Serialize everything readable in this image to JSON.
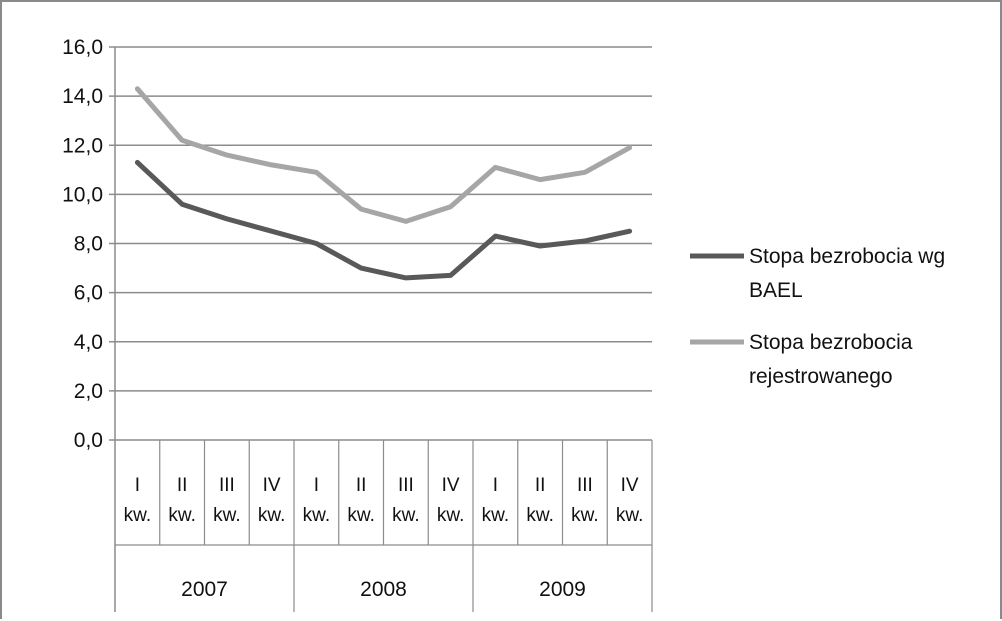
{
  "chart_data": {
    "type": "line",
    "categories": [
      "I kw.",
      "II kw.",
      "III kw.",
      "IV kw.",
      "I kw.",
      "II kw.",
      "III kw.",
      "IV kw.",
      "I kw.",
      "II kw.",
      "III kw.",
      "IV kw."
    ],
    "category_lines": [
      [
        "I",
        "kw."
      ],
      [
        "II",
        "kw."
      ],
      [
        "III",
        "kw."
      ],
      [
        "IV",
        "kw."
      ],
      [
        "I",
        "kw."
      ],
      [
        "II",
        "kw."
      ],
      [
        "III",
        "kw."
      ],
      [
        "IV",
        "kw."
      ],
      [
        "I",
        "kw."
      ],
      [
        "II",
        "kw."
      ],
      [
        "III",
        "kw."
      ],
      [
        "IV",
        "kw."
      ]
    ],
    "year_groups": [
      {
        "label": "2007",
        "span": 4
      },
      {
        "label": "2008",
        "span": 4
      },
      {
        "label": "2009",
        "span": 4
      }
    ],
    "series": [
      {
        "name_lines": [
          "Stopa bezrobocia wg",
          "BAEL"
        ],
        "color": "#595959",
        "values": [
          11.3,
          9.6,
          9.0,
          8.5,
          8.0,
          7.0,
          6.6,
          6.7,
          8.3,
          7.9,
          8.1,
          8.5
        ]
      },
      {
        "name_lines": [
          "Stopa bezrobocia",
          "rejestrowanego"
        ],
        "color": "#a6a6a6",
        "values": [
          14.3,
          12.2,
          11.6,
          11.2,
          10.9,
          9.4,
          8.9,
          9.5,
          11.1,
          10.6,
          10.9,
          11.9
        ]
      }
    ],
    "y_ticks": [
      "0,0",
      "2,0",
      "4,0",
      "6,0",
      "8,0",
      "10,0",
      "12,0",
      "14,0",
      "16,0"
    ],
    "ylim": [
      0,
      16
    ],
    "ystep": 2,
    "grid": true,
    "legend_position": "right"
  }
}
